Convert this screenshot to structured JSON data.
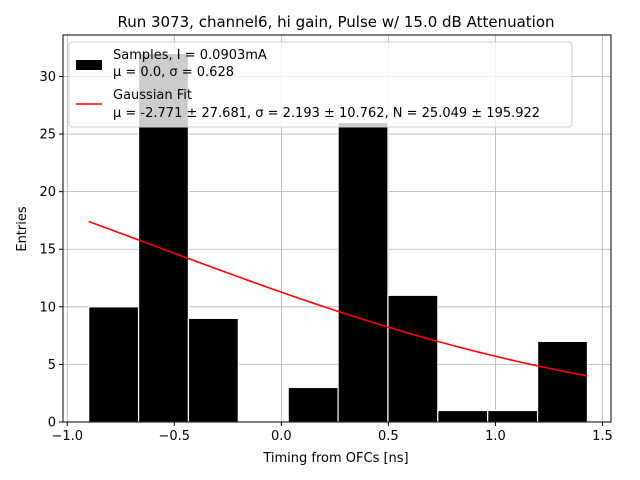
{
  "chart_data": {
    "type": "bar",
    "title": "Run 3073, channel6, hi gain, Pulse w/ 15.0 dB Attenuation",
    "xlabel": "Timing from OFCs [ns]",
    "ylabel": "Entries",
    "xlim": [
      -1.02,
      1.54
    ],
    "ylim": [
      0,
      33.6
    ],
    "xticks": [
      -1.0,
      -0.5,
      0.0,
      0.5,
      1.0,
      1.5
    ],
    "xtick_labels": [
      "−1.0",
      "−0.5",
      "0.0",
      "0.5",
      "1.0",
      "1.5"
    ],
    "yticks": [
      0,
      5,
      10,
      15,
      20,
      25,
      30
    ],
    "ytick_labels": [
      "0",
      "5",
      "10",
      "15",
      "20",
      "25",
      "30"
    ],
    "grid": true,
    "legend_position": "top",
    "histogram": {
      "bin_edges": [
        -0.9,
        -0.667,
        -0.434,
        -0.201,
        0.032,
        0.265,
        0.498,
        0.731,
        0.964,
        1.197,
        1.43
      ],
      "counts": [
        10,
        32,
        9,
        0,
        3,
        26,
        11,
        1,
        1,
        7
      ],
      "color": "#000000",
      "edge_color": "#ffffff"
    },
    "fit": {
      "x_range": [
        -0.9,
        1.43
      ],
      "mu": -2.771,
      "sigma": 2.193,
      "N": 25.049,
      "color": "#ff0000"
    },
    "legend": {
      "samples_line1": "Samples, I = 0.0903mA",
      "samples_line2": "μ = 0.0, σ = 0.628",
      "fit_line1": "Gaussian Fit",
      "fit_line2": "μ = -2.771 ± 27.681, σ = 2.193 ± 10.762, N = 25.049 ± 195.922"
    }
  }
}
